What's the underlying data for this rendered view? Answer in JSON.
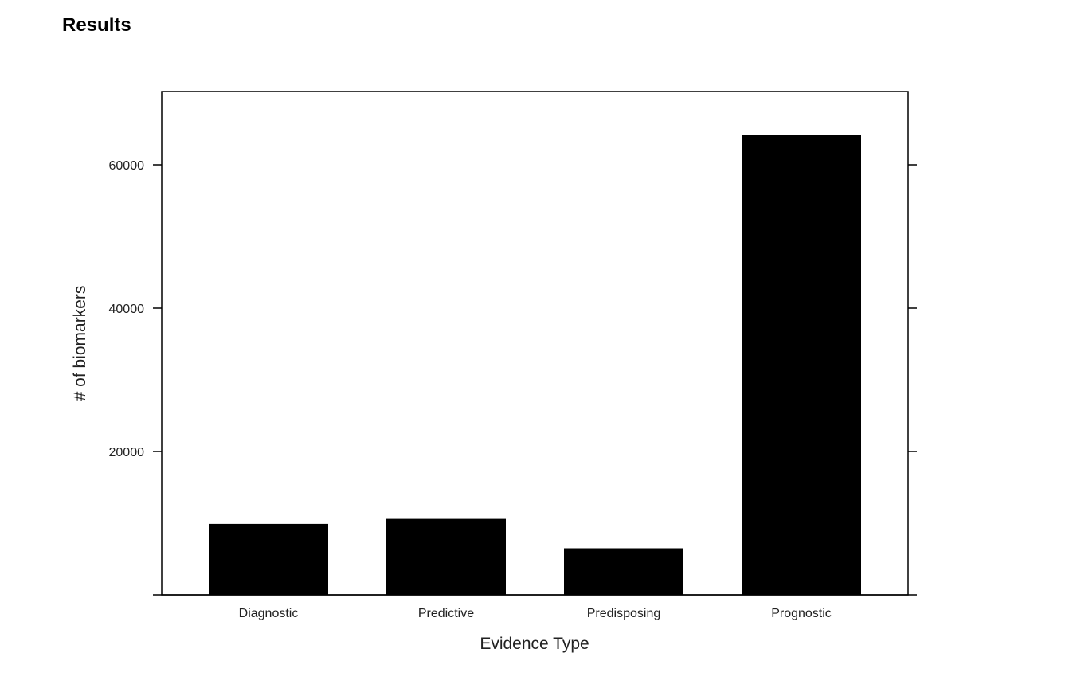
{
  "page": {
    "heading": "Results"
  },
  "chart_data": {
    "type": "bar",
    "title": "",
    "xlabel": "Evidence Type",
    "ylabel": "# of biomarkers",
    "categories": [
      "Diagnostic",
      "Predictive",
      "Predisposing",
      "Prognostic"
    ],
    "values": [
      9900,
      10600,
      6500,
      64200
    ],
    "ylim": [
      0,
      70000
    ],
    "yticks": [
      20000,
      40000,
      60000
    ],
    "bar_color": "#000000",
    "grid": false
  }
}
